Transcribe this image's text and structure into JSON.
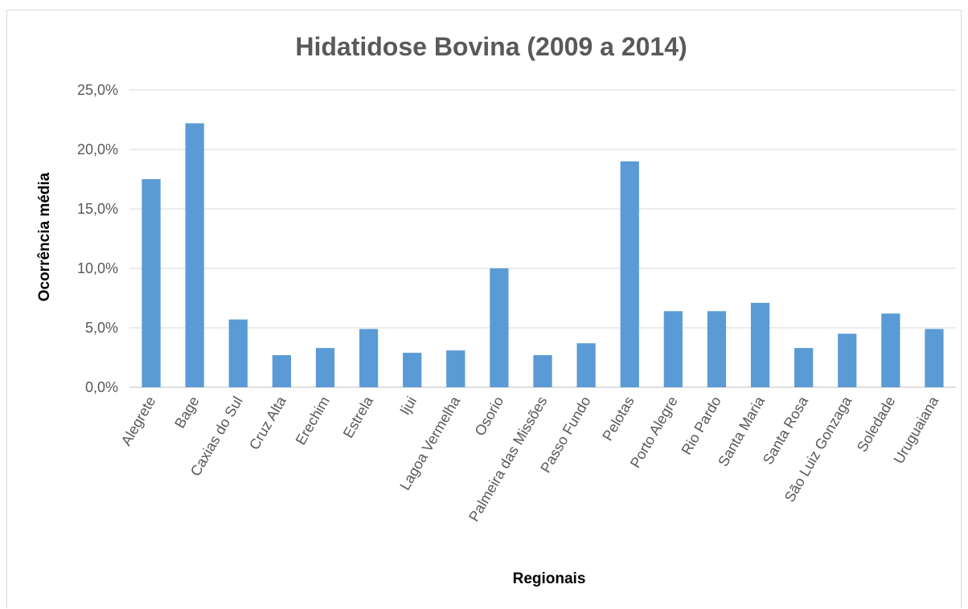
{
  "chart_data": {
    "type": "bar",
    "title": "Hidatidose Bovina  (2009 a 2014)",
    "xlabel": "Regionais",
    "ylabel": "Ocorrência média",
    "ylim": [
      0,
      25
    ],
    "yticks": [
      0,
      5,
      10,
      15,
      20,
      25
    ],
    "ytick_labels": [
      "0,0%",
      "5,0%",
      "10,0%",
      "15,0%",
      "20,0%",
      "25,0%"
    ],
    "grid": true,
    "legend": "none",
    "color": "#5b9bd5",
    "categories": [
      "Alegrete",
      "Bage",
      "Caxias do Sul",
      "Cruz Alta",
      "Erechim",
      "Estrela",
      "Ijui",
      "Lagoa Vermelha",
      "Osorio",
      "Palmeira das Missões",
      "Passo Fundo",
      "Pelotas",
      "Porto Alegre",
      "Rio Pardo",
      "Santa Maria",
      "Santa Rosa",
      "São Luiz Gonzaga",
      "Soledade",
      "Uruguaiana"
    ],
    "values": [
      17.5,
      22.2,
      5.7,
      2.7,
      3.3,
      4.9,
      2.9,
      3.1,
      10.0,
      2.7,
      3.7,
      19.0,
      6.4,
      6.4,
      7.1,
      3.3,
      4.5,
      6.2,
      4.9
    ]
  }
}
